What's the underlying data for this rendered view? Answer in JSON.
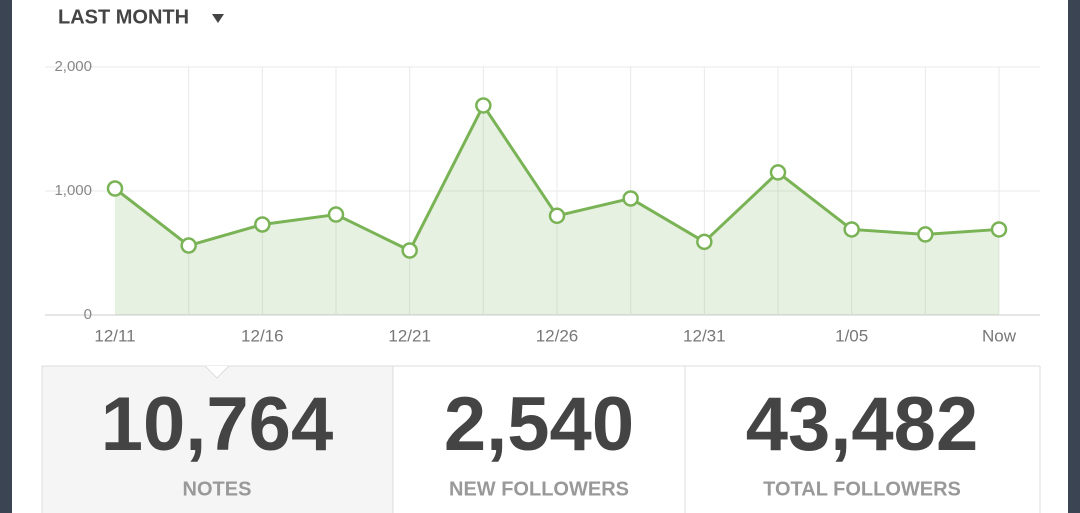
{
  "header": {
    "title": "LAST MONTH"
  },
  "chart_data": {
    "type": "line",
    "categories": [
      "12/11",
      null,
      "12/16",
      null,
      "12/21",
      null,
      "12/26",
      null,
      "12/31",
      null,
      "1/05",
      null,
      "Now"
    ],
    "values": [
      1020,
      560,
      730,
      810,
      520,
      1690,
      800,
      940,
      590,
      1150,
      690,
      650,
      690
    ],
    "color": "#7ab356",
    "area": true,
    "ylim": [
      0,
      2000
    ],
    "yticks": [
      0,
      {
        "value": 1000,
        "label": "1,000"
      },
      {
        "value": 2000,
        "label": "2,000"
      }
    ],
    "grid": true
  },
  "stats": [
    {
      "value": "10,764",
      "label": "NOTES"
    },
    {
      "value": "2,540",
      "label": "NEW FOLLOWERS"
    },
    {
      "value": "43,482",
      "label": "TOTAL FOLLOWERS"
    }
  ]
}
